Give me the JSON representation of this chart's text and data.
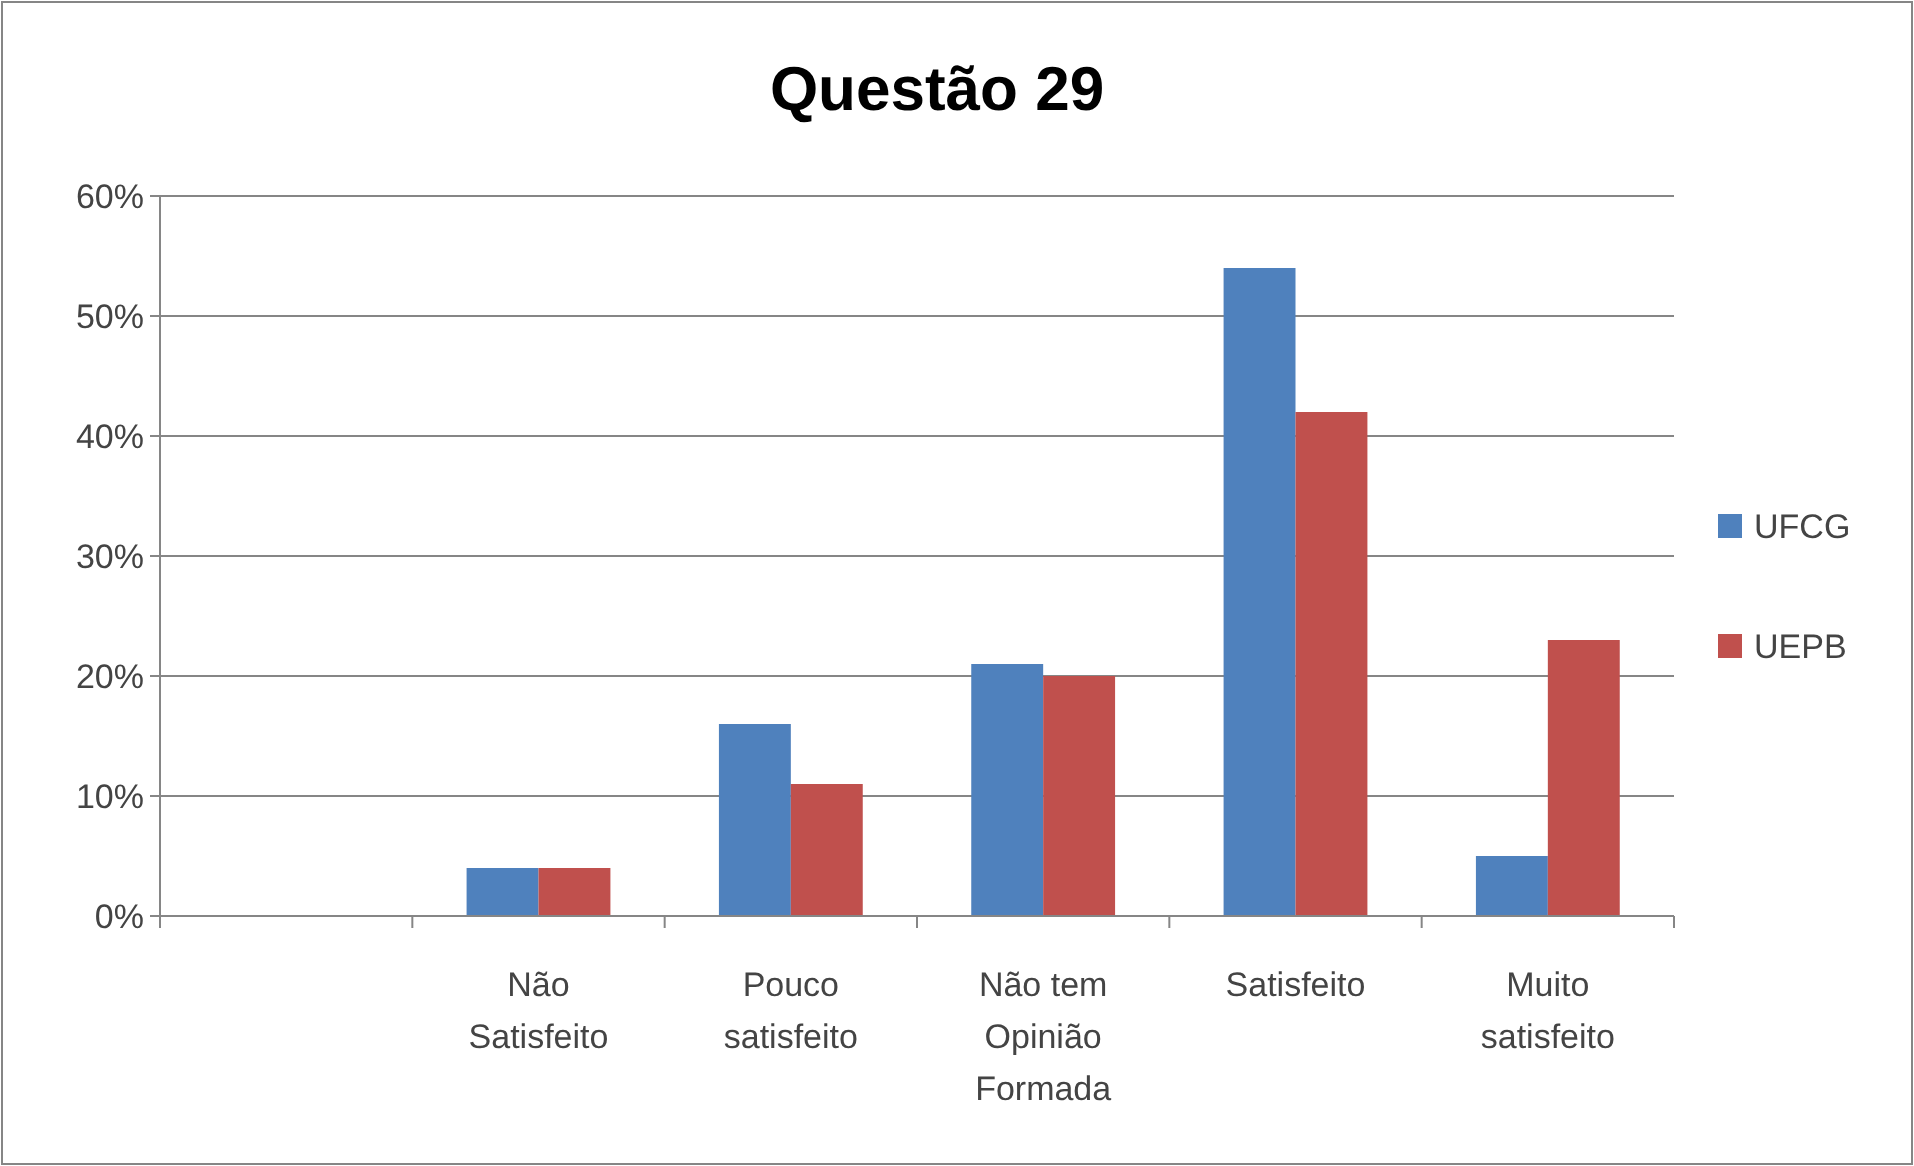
{
  "chart_data": {
    "type": "bar",
    "title": "Questão 29",
    "categories": [
      null,
      "Não Satisfeito",
      "Pouco satisfeito",
      "Não tem Opinião Formada",
      "Satisfeito",
      "Muito satisfeito"
    ],
    "series": [
      {
        "name": "UFCG",
        "color": "#4f81bd",
        "values": [
          null,
          4,
          16,
          21,
          54,
          5
        ]
      },
      {
        "name": "UEPB",
        "color": "#c0504d",
        "values": [
          null,
          4,
          11,
          20,
          42,
          23
        ]
      }
    ],
    "ylim": [
      0,
      60
    ],
    "yticks": [
      {
        "value": 0,
        "label": "0%"
      },
      {
        "value": 10,
        "label": "10%"
      },
      {
        "value": 20,
        "label": "20%"
      },
      {
        "value": 30,
        "label": "30%"
      },
      {
        "value": 40,
        "label": "40%"
      },
      {
        "value": 50,
        "label": "50%"
      },
      {
        "value": 60,
        "label": "60%"
      }
    ],
    "grid": "y",
    "legend": "right"
  }
}
